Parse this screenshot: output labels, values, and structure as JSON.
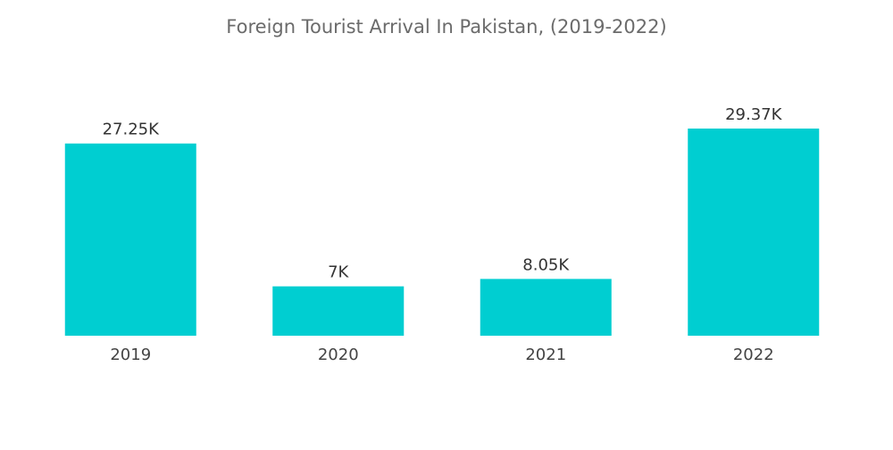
{
  "chart_data": {
    "type": "bar",
    "title": "Foreign Tourist Arrival In Pakistan, (2019-2022)",
    "xlabel": "",
    "ylabel": "",
    "categories": [
      "2019",
      "2020",
      "2021",
      "2022"
    ],
    "values": [
      27.25,
      7,
      8.05,
      29.37
    ],
    "data_labels": [
      "27.25K",
      "7K",
      "8.05K",
      "29.37K"
    ],
    "unit": "K",
    "ylim": [
      0,
      31
    ],
    "grid": false,
    "legend": "none",
    "colors": {
      "bar": "#00CED1",
      "title": "#6b6b6b",
      "labels": "#333333"
    }
  }
}
